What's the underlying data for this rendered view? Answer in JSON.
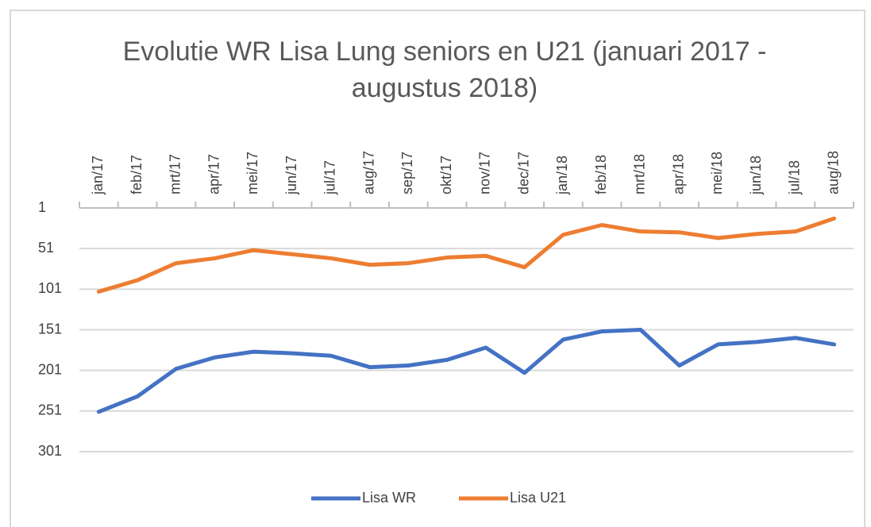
{
  "chart_data": {
    "type": "line",
    "title": "Evolutie WR Lisa Lung seniors en U21 (januari 2017 - augustus 2018)",
    "categories": [
      "jan/17",
      "feb/17",
      "mrt/17",
      "apr/17",
      "mei/17",
      "jun/17",
      "jul/17",
      "aug/17",
      "sep/17",
      "okt/17",
      "nov/17",
      "dec/17",
      "jan/18",
      "feb/18",
      "mrt/18",
      "apr/18",
      "mei/18",
      "jun/18",
      "jul/18",
      "aug/18"
    ],
    "series": [
      {
        "name": "Lisa WR",
        "color": "#4472c4",
        "values": [
          252,
          233,
          199,
          185,
          178,
          180,
          183,
          197,
          195,
          188,
          173,
          204,
          163,
          153,
          151,
          195,
          169,
          166,
          161,
          169
        ]
      },
      {
        "name": "Lisa U21",
        "color": "#ed7d31",
        "values": [
          104,
          90,
          69,
          63,
          53,
          58,
          63,
          71,
          69,
          62,
          60,
          74,
          34,
          22,
          30,
          31,
          38,
          33,
          30,
          14
        ]
      }
    ],
    "ylim": [
      1,
      301
    ],
    "yticks": [
      1,
      51,
      101,
      151,
      201,
      251,
      301
    ],
    "y_reversed": true,
    "grid": true,
    "legend": "bottom"
  }
}
